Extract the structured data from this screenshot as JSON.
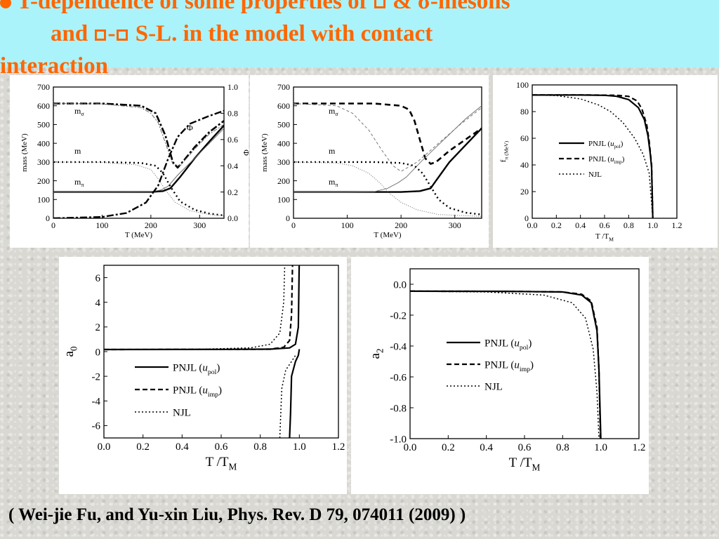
{
  "title": {
    "line1": "T-dependence of some properties of",
    "line1_mid": "&",
    "line1_end": "-mesons",
    "line1_symbol": "σ",
    "line2_start": "and",
    "line2_end": "S-L. in the model with contact",
    "line3": "interaction"
  },
  "citation": "( Wei-jie Fu, and  Yu-xin Liu,  Phys. Rev. D 79, 074011 (2009) )",
  "colors": {
    "title": "#ff6600",
    "title_band": "#aaf3fb"
  },
  "chart_data": [
    {
      "type": "line",
      "name": "panel-mass-phi-left",
      "xlabel": "T (MeV)",
      "ylabel": "mass (MeV)",
      "y2label": "Φ",
      "xlim": [
        0,
        350
      ],
      "ylim": [
        0,
        700
      ],
      "y2lim": [
        0,
        1.0
      ],
      "xticks": [
        "0",
        "100",
        "200",
        "300"
      ],
      "yticks": [
        "0",
        "100",
        "200",
        "300",
        "400",
        "500",
        "600",
        "700"
      ],
      "y2ticks": [
        "0.0",
        "0.2",
        "0.4",
        "0.6",
        "0.8",
        "1.0"
      ],
      "annotations": [
        "mσ",
        "m",
        "mπ",
        "Φ"
      ],
      "series": [
        {
          "style": "dash-dot-thick",
          "x": [
            0,
            100,
            180,
            210,
            230,
            245,
            255,
            265,
            290,
            320,
            350
          ],
          "y": [
            612,
            612,
            600,
            560,
            440,
            300,
            270,
            300,
            380,
            460,
            520
          ]
        },
        {
          "style": "dash-dot-thin",
          "x": [
            0,
            100,
            180,
            200,
            215,
            230,
            245,
            260,
            290,
            320,
            350
          ],
          "y": [
            612,
            610,
            590,
            560,
            510,
            400,
            290,
            280,
            370,
            450,
            500
          ]
        },
        {
          "style": "solid-thick",
          "x": [
            0,
            100,
            200,
            225,
            240,
            260,
            290,
            320,
            350
          ],
          "y": [
            140,
            140,
            140,
            145,
            160,
            220,
            320,
            410,
            495
          ]
        },
        {
          "style": "solid-thin",
          "x": [
            0,
            100,
            200,
            220,
            235,
            255,
            290,
            320,
            350
          ],
          "y": [
            140,
            140,
            141,
            150,
            170,
            230,
            320,
            400,
            480
          ]
        },
        {
          "style": "dot-thick",
          "x": [
            0,
            100,
            180,
            210,
            225,
            240,
            260,
            290,
            320,
            350
          ],
          "y": [
            300,
            300,
            295,
            280,
            240,
            170,
            90,
            45,
            25,
            15
          ]
        },
        {
          "style": "dot-thin",
          "x": [
            0,
            100,
            170,
            200,
            215,
            230,
            250,
            280,
            320,
            350
          ],
          "y": [
            300,
            298,
            285,
            260,
            210,
            150,
            85,
            40,
            20,
            12
          ]
        },
        {
          "style": "phi-dash-dot",
          "x": [
            0,
            100,
            150,
            190,
            215,
            235,
            255,
            280,
            320,
            350
          ],
          "y2": [
            0.0,
            0.01,
            0.04,
            0.12,
            0.25,
            0.45,
            0.62,
            0.72,
            0.78,
            0.82
          ]
        }
      ]
    },
    {
      "type": "line",
      "name": "panel-mass-middle",
      "xlabel": "T (MeV)",
      "ylabel": "mass (MeV)",
      "xlim": [
        0,
        350
      ],
      "ylim": [
        0,
        700
      ],
      "xticks": [
        "0",
        "100",
        "200",
        "300"
      ],
      "yticks": [
        "0",
        "100",
        "200",
        "300",
        "400",
        "500",
        "600",
        "700"
      ],
      "annotations": [
        "mσ",
        "m",
        "mπ"
      ],
      "series": [
        {
          "style": "dash-thick",
          "x": [
            0,
            150,
            200,
            215,
            225,
            235,
            245,
            255,
            265,
            290,
            320,
            350
          ],
          "y": [
            612,
            612,
            600,
            580,
            520,
            420,
            320,
            290,
            300,
            360,
            420,
            480
          ]
        },
        {
          "style": "solid-thin-grey-dash",
          "x": [
            0,
            80,
            110,
            140,
            165,
            185,
            200,
            230,
            270,
            310,
            350
          ],
          "y": [
            612,
            600,
            560,
            470,
            360,
            280,
            250,
            300,
            400,
            500,
            590
          ]
        },
        {
          "style": "solid-thick",
          "x": [
            0,
            100,
            200,
            235,
            255,
            265,
            290,
            320,
            350
          ],
          "y": [
            140,
            140,
            140,
            145,
            160,
            200,
            300,
            390,
            480
          ]
        },
        {
          "style": "solid-thin-grey",
          "x": [
            0,
            100,
            150,
            175,
            195,
            210,
            240,
            280,
            320,
            350
          ],
          "y": [
            140,
            140,
            142,
            160,
            190,
            220,
            310,
            420,
            530,
            600
          ]
        },
        {
          "style": "dot-thick",
          "x": [
            0,
            150,
            200,
            225,
            240,
            255,
            270,
            290,
            320,
            350
          ],
          "y": [
            300,
            300,
            295,
            280,
            240,
            170,
            100,
            55,
            30,
            20
          ]
        },
        {
          "style": "dot-thin",
          "x": [
            0,
            80,
            110,
            140,
            160,
            180,
            200,
            230,
            270,
            350
          ],
          "y": [
            300,
            295,
            280,
            240,
            190,
            130,
            85,
            45,
            20,
            10
          ]
        }
      ]
    },
    {
      "type": "line",
      "name": "panel-f-pi",
      "xlabel": "T /T_M",
      "ylabel": "f_π (MeV)",
      "xlim": [
        0.0,
        1.2
      ],
      "ylim": [
        0,
        100
      ],
      "xticks": [
        "0.0",
        "0.2",
        "0.4",
        "0.6",
        "0.8",
        "1.0",
        "1.2"
      ],
      "yticks": [
        "0",
        "20",
        "40",
        "60",
        "80",
        "100"
      ],
      "series": [
        {
          "name": "PNJL (u_pol)",
          "style": "solid",
          "x": [
            0,
            0.4,
            0.6,
            0.7,
            0.8,
            0.88,
            0.93,
            0.96,
            0.98,
            0.99,
            1.0
          ],
          "y": [
            92.4,
            92.4,
            92.2,
            91.5,
            89,
            83,
            74,
            62,
            48,
            38,
            0
          ]
        },
        {
          "name": "PNJL (u_imp)",
          "style": "dash",
          "x": [
            0,
            0.5,
            0.7,
            0.8,
            0.87,
            0.91,
            0.95,
            0.97,
            0.99,
            1.0
          ],
          "y": [
            92.4,
            92.4,
            92.2,
            91.4,
            88,
            82,
            70,
            58,
            40,
            0
          ]
        },
        {
          "name": "NJL",
          "style": "dot",
          "x": [
            0,
            0.2,
            0.4,
            0.55,
            0.65,
            0.75,
            0.85,
            0.92,
            0.97,
            1.0
          ],
          "y": [
            92.4,
            92,
            89.5,
            85,
            80,
            72,
            60,
            48,
            34,
            0
          ]
        }
      ],
      "legend": [
        "PNJL (u_pol)",
        "PNJL (u_imp)",
        "NJL"
      ]
    },
    {
      "type": "line",
      "name": "panel-a0",
      "xlabel": "T /T_M",
      "ylabel": "a_0",
      "xlim": [
        0.0,
        1.2
      ],
      "ylim": [
        -7,
        7
      ],
      "xticks": [
        "0.0",
        "0.2",
        "0.4",
        "0.6",
        "0.8",
        "1.0",
        "1.2"
      ],
      "yticks": [
        "-6",
        "-4",
        "-2",
        "0",
        "2",
        "4",
        "6"
      ],
      "series": [
        {
          "name": "PNJL (u_pol)",
          "style": "solid",
          "x": [
            0,
            0.6,
            0.85,
            0.95,
            0.98,
            0.995,
            0.999
          ],
          "y": [
            0.17,
            0.18,
            0.2,
            0.3,
            0.6,
            2,
            7
          ]
        },
        {
          "name": "PNJL (u_pol)",
          "style": "solid",
          "x": [
            0.95,
            0.955,
            0.96,
            0.98,
            0.995,
            1.0
          ],
          "y": [
            -7,
            -5,
            -2,
            -0.8,
            -0.3,
            0.2
          ]
        },
        {
          "name": "PNJL (u_imp)",
          "style": "dash",
          "x": [
            0,
            0.6,
            0.85,
            0.92,
            0.95,
            0.96,
            0.965
          ],
          "y": [
            0.17,
            0.18,
            0.2,
            0.35,
            0.9,
            3,
            7
          ]
        },
        {
          "name": "NJL",
          "style": "dot",
          "x": [
            0,
            0.5,
            0.75,
            0.85,
            0.9,
            0.92,
            0.925
          ],
          "y": [
            0.17,
            0.2,
            0.3,
            0.6,
            1.5,
            4,
            7
          ]
        },
        {
          "name": "NJL",
          "style": "dot",
          "x": [
            0.9,
            0.905,
            0.91,
            0.93,
            0.96,
            0.98
          ],
          "y": [
            -7,
            -5,
            -3,
            -1.5,
            -0.8,
            -0.3
          ]
        }
      ],
      "legend": [
        "PNJL (u_pol)",
        "PNJL (u_imp)",
        "NJL"
      ]
    },
    {
      "type": "line",
      "name": "panel-a2",
      "xlabel": "T /T_M",
      "ylabel": "a_2",
      "xlim": [
        0.0,
        1.2
      ],
      "ylim": [
        -1.0,
        0.1
      ],
      "xticks": [
        "0.0",
        "0.2",
        "0.4",
        "0.6",
        "0.8",
        "1.0",
        "1.2"
      ],
      "yticks": [
        "-1.0",
        "-0.8",
        "-0.6",
        "-0.4",
        "-0.2",
        "0.0"
      ],
      "series": [
        {
          "name": "PNJL (u_pol)",
          "style": "solid",
          "x": [
            0,
            0.5,
            0.8,
            0.9,
            0.95,
            0.98,
            0.99,
            1.0
          ],
          "y": [
            -0.045,
            -0.046,
            -0.05,
            -0.07,
            -0.12,
            -0.3,
            -0.55,
            -1.0
          ]
        },
        {
          "name": "PNJL (u_imp)",
          "style": "dash",
          "x": [
            0,
            0.5,
            0.8,
            0.9,
            0.95,
            0.98,
            0.99,
            0.998
          ],
          "y": [
            -0.045,
            -0.046,
            -0.05,
            -0.065,
            -0.11,
            -0.28,
            -0.55,
            -1.0
          ]
        },
        {
          "name": "NJL",
          "style": "dot",
          "x": [
            0,
            0.4,
            0.7,
            0.85,
            0.92,
            0.96,
            0.98,
            0.99
          ],
          "y": [
            -0.045,
            -0.05,
            -0.07,
            -0.12,
            -0.22,
            -0.42,
            -0.7,
            -1.0
          ]
        }
      ],
      "legend": [
        "PNJL (u_pol)",
        "PNJL (u_imp)",
        "NJL"
      ]
    }
  ]
}
